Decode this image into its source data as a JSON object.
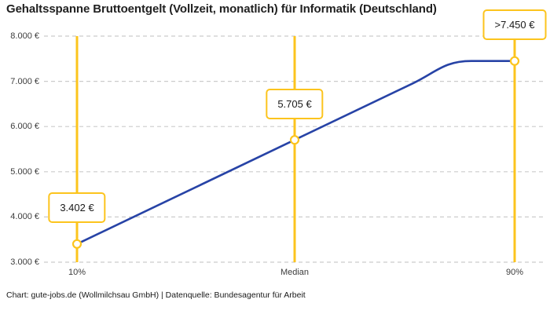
{
  "title": "Gehaltsspanne Bruttoentgelt (Vollzeit, monatlich) für Informatik (Deutschland)",
  "footer": "Chart: gute-jobs.de (Wollmilchsau GmbH) | Datenquelle: Bundesagentur für Arbeit",
  "chart_data": {
    "type": "line",
    "title": "Gehaltsspanne Bruttoentgelt (Vollzeit, monatlich) für Informatik (Deutschland)",
    "categories": [
      "10%",
      "Median",
      "90%"
    ],
    "values": [
      3402,
      5705,
      7450
    ],
    "value_labels": [
      "3.402 €",
      "5.705 €",
      ">7.450 €"
    ],
    "last_value_capped": true,
    "xlabel": "",
    "ylabel": "",
    "ylim": [
      3000,
      8000
    ],
    "grid": true,
    "legend": false,
    "yticks": [
      {
        "value": 8000,
        "label": "8.000 €"
      },
      {
        "value": 7000,
        "label": "7.000 €"
      },
      {
        "value": 6000,
        "label": "6.000 €"
      },
      {
        "value": 5000,
        "label": "5.000 €"
      },
      {
        "value": 4000,
        "label": "4.000 €"
      },
      {
        "value": 3000,
        "label": "3.000 €"
      }
    ],
    "colors": {
      "line": "#2743a6",
      "accent": "#fcc41d",
      "grid": "#cccccc",
      "label_box_bg": "#ffffff",
      "text": "#212121"
    }
  }
}
